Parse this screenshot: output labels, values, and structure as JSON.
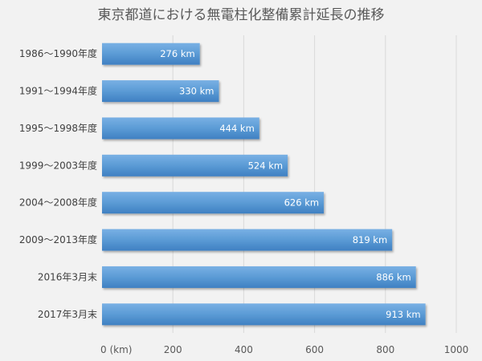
{
  "chart_data": {
    "type": "bar",
    "orientation": "horizontal",
    "title": "東京都道における無電柱化整備累計延長の推移",
    "categories": [
      "1986～1990年度",
      "1991～1994年度",
      "1995～1998年度",
      "1999～2003年度",
      "2004～2008年度",
      "2009～2013年度",
      "2016年3月末",
      "2017年3月末"
    ],
    "values": [
      276,
      330,
      444,
      524,
      626,
      819,
      886,
      913
    ],
    "data_labels": [
      "276 km",
      "330 km",
      "444 km",
      "524 km",
      "626 km",
      "819 km",
      "886 km",
      "913 km"
    ],
    "x_ticks": [
      "0 (km)",
      "200",
      "400",
      "600",
      "800",
      "1000"
    ],
    "xlim": [
      0,
      1000
    ],
    "grid": "vertical",
    "legend": "none",
    "bar_color": "#5b9bd5"
  }
}
